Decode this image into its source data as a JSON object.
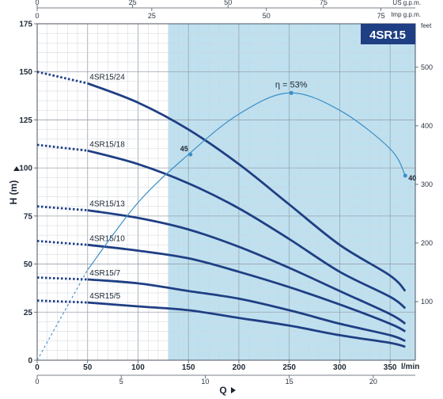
{
  "chart_data": {
    "type": "line",
    "model": "4SR15",
    "xlabel": "Q",
    "ylabel": "H (m)",
    "x_unit": "l/min",
    "y_right_unit": "feet",
    "x_top_unit_1": "US g.p.m.",
    "x_top_unit_2": "Imp g.p.m.",
    "xlim": [
      0,
      375
    ],
    "ylim": [
      0,
      175
    ],
    "bottom_ticks": [
      "0",
      "50",
      "100",
      "150",
      "200",
      "250",
      "300",
      "350"
    ],
    "bottom_ticks2": [
      "0",
      "5",
      "10",
      "15",
      "20"
    ],
    "top_ticks_us": [
      "0",
      "25",
      "50",
      "75"
    ],
    "top_ticks_imp": [
      "0",
      "25",
      "50",
      "75"
    ],
    "left_ticks": [
      "0",
      "25",
      "50",
      "75",
      "100",
      "125",
      "150",
      "175"
    ],
    "right_ticks": [
      "100",
      "200",
      "300",
      "400",
      "500"
    ],
    "operating_range": [
      130,
      375
    ],
    "series": [
      {
        "name": "4SR15/24",
        "dotted_x": [
          0,
          50
        ],
        "dotted_y": [
          150,
          144
        ],
        "x": [
          50,
          100,
          150,
          200,
          250,
          300,
          350,
          365
        ],
        "y": [
          144,
          134,
          120,
          102,
          81,
          60,
          44,
          36
        ]
      },
      {
        "name": "4SR15/18",
        "dotted_x": [
          0,
          50
        ],
        "dotted_y": [
          112,
          109
        ],
        "x": [
          50,
          100,
          150,
          200,
          250,
          300,
          350,
          365
        ],
        "y": [
          109,
          102,
          92,
          79,
          63,
          46,
          33,
          27
        ]
      },
      {
        "name": "4SR15/13",
        "dotted_x": [
          0,
          50
        ],
        "dotted_y": [
          80,
          78
        ],
        "x": [
          50,
          100,
          150,
          200,
          250,
          300,
          350,
          365
        ],
        "y": [
          78,
          74,
          68,
          59,
          48,
          36,
          24,
          19
        ]
      },
      {
        "name": "4SR15/10",
        "dotted_x": [
          0,
          50
        ],
        "dotted_y": [
          62,
          60
        ],
        "x": [
          50,
          100,
          150,
          200,
          250,
          300,
          350,
          365
        ],
        "y": [
          60,
          57,
          53,
          46,
          38,
          29,
          19,
          15
        ]
      },
      {
        "name": "4SR15/7",
        "dotted_x": [
          0,
          50
        ],
        "dotted_y": [
          43,
          42
        ],
        "x": [
          50,
          100,
          150,
          200,
          250,
          300,
          350,
          365
        ],
        "y": [
          42,
          40,
          36,
          32,
          26,
          19,
          13,
          10
        ]
      },
      {
        "name": "4SR15/5",
        "dotted_x": [
          0,
          50
        ],
        "dotted_y": [
          31,
          30
        ],
        "x": [
          50,
          100,
          150,
          200,
          250,
          300,
          350,
          365
        ],
        "y": [
          30,
          28,
          26,
          22,
          18,
          13,
          9,
          7
        ]
      }
    ],
    "efficiency": {
      "label": "η = 53%",
      "x": [
        0,
        50,
        100,
        150,
        200,
        250,
        300,
        350,
        365
      ],
      "y": [
        0,
        47,
        82,
        107,
        128,
        139,
        130,
        110,
        96
      ],
      "marked_points": [
        {
          "label": "45",
          "x": 152,
          "y": 107
        },
        {
          "label": "40",
          "x": 365,
          "y": 96
        }
      ],
      "peak": {
        "x": 252,
        "y": 139
      }
    }
  }
}
